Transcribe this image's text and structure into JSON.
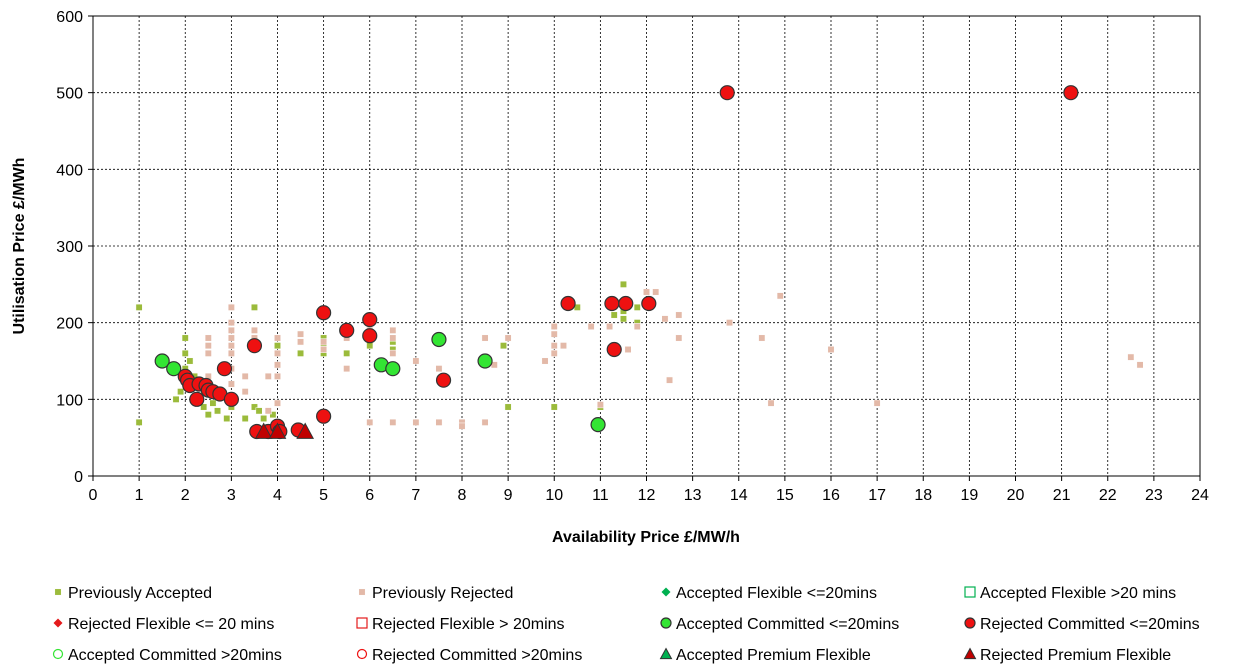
{
  "chart_data": {
    "type": "scatter",
    "title": "",
    "xlabel": "Availability Price £/MW/h",
    "ylabel": "Utilisation Price £/MWh",
    "xlim": [
      0,
      24
    ],
    "ylim": [
      0,
      600
    ],
    "x_ticks": [
      "0",
      "1",
      "2",
      "3",
      "4",
      "5",
      "6",
      "7",
      "8",
      "9",
      "10",
      "11",
      "12",
      "13",
      "14",
      "15",
      "16",
      "17",
      "18",
      "19",
      "20",
      "21",
      "22",
      "23",
      "24"
    ],
    "y_ticks": [
      "0",
      "100",
      "200",
      "300",
      "400",
      "500",
      "600"
    ],
    "grid": true,
    "legend_position": "bottom",
    "series": [
      {
        "name": "Previously Accepted",
        "marker": "small-square",
        "color": "#9BBB3B",
        "points": [
          [
            1,
            220
          ],
          [
            1,
            70
          ],
          [
            1.8,
            100
          ],
          [
            1.9,
            110
          ],
          [
            2,
            120
          ],
          [
            2,
            140
          ],
          [
            2,
            160
          ],
          [
            2,
            180
          ],
          [
            2.1,
            150
          ],
          [
            2.2,
            130
          ],
          [
            2.3,
            105
          ],
          [
            2.4,
            90
          ],
          [
            2.5,
            80
          ],
          [
            2.6,
            95
          ],
          [
            2.7,
            85
          ],
          [
            2.8,
            110
          ],
          [
            2.9,
            75
          ],
          [
            3,
            120
          ],
          [
            3,
            90
          ],
          [
            3.3,
            75
          ],
          [
            3.5,
            220
          ],
          [
            3.5,
            90
          ],
          [
            3.6,
            85
          ],
          [
            3.7,
            75
          ],
          [
            3.8,
            85
          ],
          [
            3.9,
            80
          ],
          [
            4,
            180
          ],
          [
            4,
            170
          ],
          [
            4,
            70
          ],
          [
            4.5,
            160
          ],
          [
            5,
            180
          ],
          [
            5,
            170
          ],
          [
            5,
            160
          ],
          [
            5.5,
            160
          ],
          [
            6,
            180
          ],
          [
            6,
            170
          ],
          [
            6.5,
            175
          ],
          [
            6.5,
            165
          ],
          [
            8.9,
            170
          ],
          [
            9,
            90
          ],
          [
            10,
            90
          ],
          [
            10.5,
            220
          ],
          [
            11,
            90
          ],
          [
            11.3,
            210
          ],
          [
            11.5,
            250
          ],
          [
            11.5,
            215
          ],
          [
            11.5,
            205
          ],
          [
            11.8,
            220
          ],
          [
            11.8,
            200
          ]
        ]
      },
      {
        "name": "Previously Rejected",
        "marker": "small-square",
        "color": "#E3B9A8",
        "points": [
          [
            2.5,
            180
          ],
          [
            2.5,
            170
          ],
          [
            2.5,
            160
          ],
          [
            2.5,
            130
          ],
          [
            2.5,
            110
          ],
          [
            3,
            220
          ],
          [
            3,
            200
          ],
          [
            3,
            190
          ],
          [
            3,
            180
          ],
          [
            3,
            170
          ],
          [
            3,
            160
          ],
          [
            3,
            140
          ],
          [
            3,
            120
          ],
          [
            3.3,
            130
          ],
          [
            3.3,
            110
          ],
          [
            3.5,
            190
          ],
          [
            3.5,
            180
          ],
          [
            3.5,
            165
          ],
          [
            3.8,
            130
          ],
          [
            3.8,
            85
          ],
          [
            4,
            180
          ],
          [
            4,
            160
          ],
          [
            4,
            145
          ],
          [
            4,
            130
          ],
          [
            4,
            95
          ],
          [
            4.5,
            185
          ],
          [
            4.5,
            175
          ],
          [
            5,
            175
          ],
          [
            5,
            165
          ],
          [
            5.5,
            180
          ],
          [
            5.5,
            140
          ],
          [
            6,
            190
          ],
          [
            6,
            70
          ],
          [
            6.5,
            190
          ],
          [
            6.5,
            180
          ],
          [
            6.5,
            160
          ],
          [
            6.5,
            70
          ],
          [
            7,
            150
          ],
          [
            7,
            70
          ],
          [
            7.5,
            140
          ],
          [
            7.5,
            70
          ],
          [
            8,
            70
          ],
          [
            8,
            65
          ],
          [
            8.5,
            180
          ],
          [
            8.5,
            70
          ],
          [
            8.7,
            145
          ],
          [
            9,
            180
          ],
          [
            9.8,
            150
          ],
          [
            10,
            195
          ],
          [
            10,
            185
          ],
          [
            10,
            170
          ],
          [
            10,
            160
          ],
          [
            10.2,
            170
          ],
          [
            10.8,
            195
          ],
          [
            11,
            93
          ],
          [
            11.2,
            195
          ],
          [
            11.5,
            225
          ],
          [
            11.6,
            165
          ],
          [
            11.8,
            195
          ],
          [
            12,
            240
          ],
          [
            12.2,
            240
          ],
          [
            12.4,
            205
          ],
          [
            12.5,
            125
          ],
          [
            12.7,
            210
          ],
          [
            12.7,
            180
          ],
          [
            13.8,
            200
          ],
          [
            14.5,
            180
          ],
          [
            14.7,
            95
          ],
          [
            14.9,
            235
          ],
          [
            16,
            165
          ],
          [
            17,
            95
          ],
          [
            22.5,
            155
          ],
          [
            22.7,
            145
          ]
        ]
      },
      {
        "name": "Accepted Flexible <=20mins",
        "marker": "diamond",
        "color": "#00B050",
        "points": []
      },
      {
        "name": "Accepted Flexible >20 mins",
        "marker": "open-square",
        "color": "#00B050",
        "points": []
      },
      {
        "name": "Rejected Flexible <= 20 mins",
        "marker": "diamond",
        "color": "#E41A1C",
        "points": []
      },
      {
        "name": "Rejected Flexible > 20mins",
        "marker": "open-square",
        "color": "#E41A1C",
        "points": []
      },
      {
        "name": "Accepted Committed <=20mins",
        "marker": "circle",
        "color": "#33E533",
        "points": [
          [
            1.5,
            150
          ],
          [
            1.75,
            140
          ],
          [
            6.25,
            145
          ],
          [
            6.5,
            140
          ],
          [
            7.5,
            178
          ],
          [
            8.5,
            150
          ],
          [
            10.95,
            67
          ]
        ]
      },
      {
        "name": "Rejected Committed <=20mins",
        "marker": "circle",
        "color": "#EE1111",
        "points": [
          [
            2,
            130
          ],
          [
            2.05,
            125
          ],
          [
            2.1,
            118
          ],
          [
            2.25,
            100
          ],
          [
            2.3,
            120
          ],
          [
            2.45,
            118
          ],
          [
            2.5,
            112
          ],
          [
            2.6,
            110
          ],
          [
            2.75,
            107
          ],
          [
            2.85,
            140
          ],
          [
            3,
            100
          ],
          [
            3.5,
            170
          ],
          [
            3.55,
            58
          ],
          [
            3.8,
            58
          ],
          [
            4,
            65
          ],
          [
            4.05,
            58
          ],
          [
            4.45,
            60
          ],
          [
            5,
            78
          ],
          [
            5,
            213
          ],
          [
            5.5,
            190
          ],
          [
            6,
            204
          ],
          [
            6,
            183
          ],
          [
            7.6,
            125
          ],
          [
            10.3,
            225
          ],
          [
            11.25,
            225
          ],
          [
            11.3,
            165
          ],
          [
            11.55,
            225
          ],
          [
            12.05,
            225
          ],
          [
            13.75,
            500
          ],
          [
            21.2,
            500
          ]
        ]
      },
      {
        "name": "Accepted Committed >20mins",
        "marker": "open-circle",
        "color": "#33E533",
        "points": []
      },
      {
        "name": "Rejected Committed >20mins",
        "marker": "open-circle",
        "color": "#EE1111",
        "points": []
      },
      {
        "name": "Accepted Premium Flexible",
        "marker": "triangle",
        "color": "#00B050",
        "points": []
      },
      {
        "name": "Rejected Premium Flexible",
        "marker": "triangle",
        "color": "#C00000",
        "points": [
          [
            3.7,
            58
          ],
          [
            4,
            58
          ],
          [
            4.6,
            58
          ]
        ]
      }
    ]
  }
}
